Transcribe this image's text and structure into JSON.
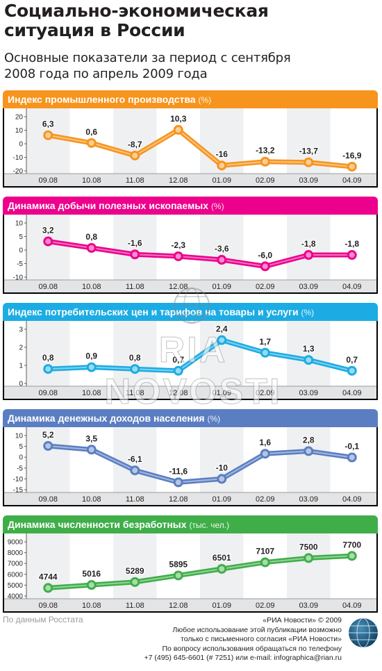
{
  "header": {
    "title_line1": "Социально-экономическая",
    "title_line2": "ситуация в России",
    "subtitle_line1": "Основные показатели за период с сентября",
    "subtitle_line2": "2008 года по апрель 2009 года"
  },
  "chart_data": [
    {
      "type": "line",
      "title": "Индекс промышленного производства",
      "unit": "(%)",
      "color": "#f7941d",
      "categories": [
        "09.08",
        "10.08",
        "11.08",
        "12.08",
        "01.09",
        "02.09",
        "03.09",
        "04.09"
      ],
      "values": [
        6.3,
        0.6,
        -8.7,
        10.3,
        -16,
        -13.2,
        -13.7,
        -16.9
      ],
      "labels": [
        "6,3",
        "0,6",
        "-8,7",
        "10,3",
        "-16",
        "-13,2",
        "-13,7",
        "-16,9"
      ],
      "yticks": [
        20,
        10,
        0,
        -10,
        -20
      ],
      "ytick_labels": [
        "20",
        "10",
        "0",
        "-10",
        "-20"
      ],
      "ylim": [
        -20,
        20
      ]
    },
    {
      "type": "line",
      "title": "Динамика добычи полезных ископаемых",
      "unit": "(%)",
      "color": "#ec008c",
      "categories": [
        "09.08",
        "10.08",
        "11.08",
        "12.08",
        "01.09",
        "02.09",
        "03.09",
        "04.09"
      ],
      "values": [
        3.2,
        0.8,
        -1.6,
        -2.3,
        -3.6,
        -6.0,
        -1.8,
        -1.8
      ],
      "labels": [
        "3,2",
        "0,8",
        "-1,6",
        "-2,3",
        "-3,6",
        "-6,0",
        "-1,8",
        "-1,8"
      ],
      "yticks": [
        10,
        5,
        0,
        -5,
        -10
      ],
      "ytick_labels": [
        "10",
        "5",
        "0",
        "-5",
        "-10"
      ],
      "ylim": [
        -10,
        10
      ]
    },
    {
      "type": "line",
      "title": "Индекс потребительских цен и тарифов на товары и услуги",
      "unit": "(%)",
      "color": "#1cace3",
      "categories": [
        "09.08",
        "10.08",
        "11.08",
        "12.08",
        "01.09",
        "02.09",
        "03.09",
        "04.09"
      ],
      "values": [
        0.8,
        0.9,
        0.8,
        0.7,
        2.4,
        1.7,
        1.3,
        0.7
      ],
      "labels": [
        "0,8",
        "0,9",
        "0,8",
        "0,7",
        "2,4",
        "1,7",
        "1,3",
        "0,7"
      ],
      "yticks": [
        3,
        2,
        1,
        0
      ],
      "ytick_labels": [
        "3",
        "2",
        "1",
        "0"
      ],
      "ylim": [
        0,
        3
      ]
    },
    {
      "type": "line",
      "title": "Динамика денежных доходов населения",
      "unit": "(%)",
      "color": "#5b7ec2",
      "categories": [
        "09.08",
        "10.08",
        "11.08",
        "12.08",
        "01.09",
        "02.09",
        "03.09",
        "04.09"
      ],
      "values": [
        5.2,
        3.5,
        -6.1,
        -11.6,
        -10,
        1.6,
        2.8,
        -0.1
      ],
      "labels": [
        "5,2",
        "3,5",
        "-6,1",
        "-11,6",
        "-10",
        "1,6",
        "2,8",
        "-0,1"
      ],
      "yticks": [
        10,
        5,
        0,
        -5,
        -10,
        -15
      ],
      "ytick_labels": [
        "10",
        "5",
        "0",
        "-5",
        "-10",
        "-15"
      ],
      "ylim": [
        -15,
        10
      ]
    },
    {
      "type": "line",
      "title": "Динамика численности безработных",
      "unit": "(тыс. чел.)",
      "color": "#3fae49",
      "categories": [
        "09.08",
        "10.08",
        "11.08",
        "12.08",
        "01.09",
        "02.09",
        "03.09",
        "04.09"
      ],
      "values": [
        4744,
        5016,
        5289,
        5895,
        6501,
        7107,
        7500,
        7700
      ],
      "labels": [
        "4744",
        "5016",
        "5289",
        "5895",
        "6501",
        "7107",
        "7500",
        "7700"
      ],
      "yticks": [
        9000,
        8000,
        7000,
        6000,
        5000,
        4000
      ],
      "ytick_labels": [
        "9000",
        "8000",
        "7000",
        "6000",
        "5000",
        "4000"
      ],
      "ylim": [
        4000,
        9000
      ]
    }
  ],
  "footer": {
    "source": "По данным Росстата",
    "line1": "«РИА Новости» © 2009",
    "line2": "Любое использование этой публикации возможно",
    "line3": "только с письменного согласия «РИА Новости»",
    "line4": "По вопросу использования обращаться по телефону",
    "line5": "+7 (495) 645-6601 (# 7251) или e-mail: infographica@rian.ru"
  },
  "watermark": "RIA NOVOSTI",
  "logo_icon": "ria-globe-logo-icon"
}
